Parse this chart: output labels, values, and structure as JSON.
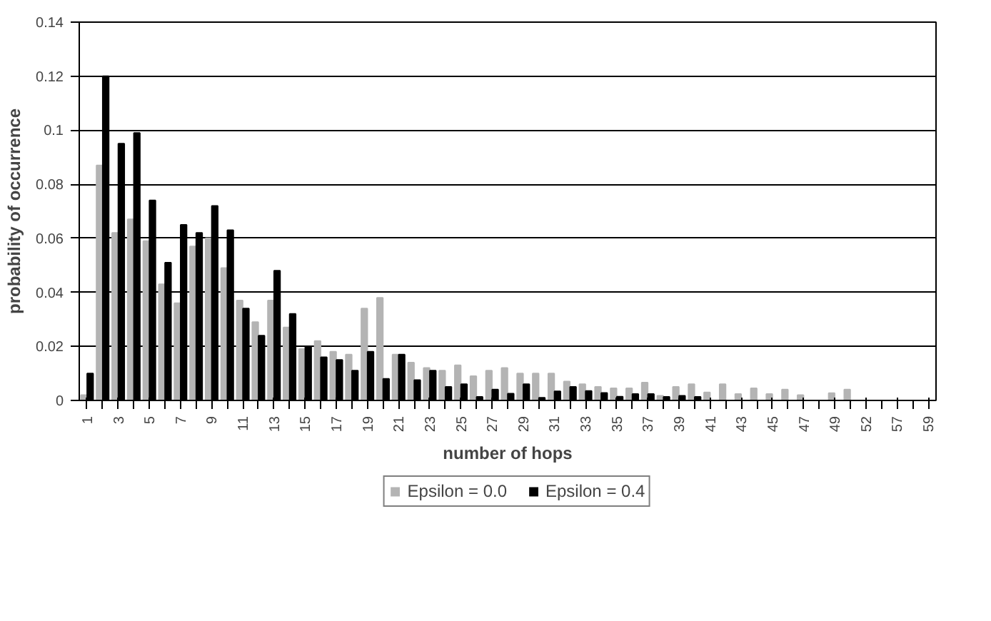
{
  "chart_data": {
    "type": "bar",
    "xlabel": "number of hops",
    "ylabel": "probability of occurrence",
    "categories": [
      "1",
      null,
      "3",
      null,
      "5",
      null,
      "7",
      null,
      "9",
      null,
      "11",
      null,
      "13",
      null,
      "15",
      null,
      "17",
      null,
      "19",
      null,
      "21",
      null,
      "23",
      null,
      "25",
      null,
      "27",
      null,
      "29",
      null,
      "31",
      null,
      "33",
      null,
      "35",
      null,
      "37",
      null,
      "39",
      null,
      "41",
      null,
      "43",
      null,
      "45",
      null,
      "47",
      null,
      "49",
      null,
      "52",
      null,
      "57",
      null,
      "59"
    ],
    "series": [
      {
        "name": "Epsilon = 0.0",
        "color": "#b4b4b4",
        "values": [
          0.002,
          0.087,
          0.062,
          0.067,
          0.059,
          0.043,
          0.036,
          0.057,
          0.06,
          0.049,
          0.037,
          0.029,
          0.037,
          0.027,
          0.019,
          0.022,
          0.018,
          0.017,
          0.034,
          0.038,
          0.017,
          0.014,
          0.012,
          0.011,
          0.013,
          0.009,
          0.011,
          0.012,
          0.01,
          0.01,
          0.01,
          0.007,
          0.006,
          0.005,
          0.0045,
          0.0045,
          0.0066,
          0.0017,
          0.005,
          0.006,
          0.003,
          0.006,
          0.0024,
          0.0045,
          0.0024,
          0.004,
          0.002,
          0,
          0.0027,
          0.004,
          0,
          0,
          0,
          0,
          0
        ]
      },
      {
        "name": "Epsilon = 0.4",
        "color": "#000000",
        "values": [
          0.01,
          0.12,
          0.095,
          0.099,
          0.074,
          0.051,
          0.065,
          0.062,
          0.072,
          0.063,
          0.034,
          0.024,
          0.048,
          0.032,
          0.02,
          0.016,
          0.015,
          0.011,
          0.018,
          0.008,
          0.017,
          0.0075,
          0.011,
          0.005,
          0.006,
          0.0013,
          0.004,
          0.0025,
          0.006,
          0.001,
          0.0034,
          0.005,
          0.0035,
          0.0028,
          0.0014,
          0.0024,
          0.0024,
          0.0013,
          0.0017,
          0.0013,
          0,
          0,
          0,
          0,
          0,
          0,
          0,
          0,
          0,
          0,
          0,
          0,
          0,
          0,
          0
        ]
      }
    ],
    "ylim": [
      0,
      0.14
    ],
    "yticks": [
      0,
      0.02,
      0.04,
      0.06,
      0.08,
      0.1,
      0.12,
      0.14
    ],
    "grid": "y",
    "legend": "bottom"
  }
}
